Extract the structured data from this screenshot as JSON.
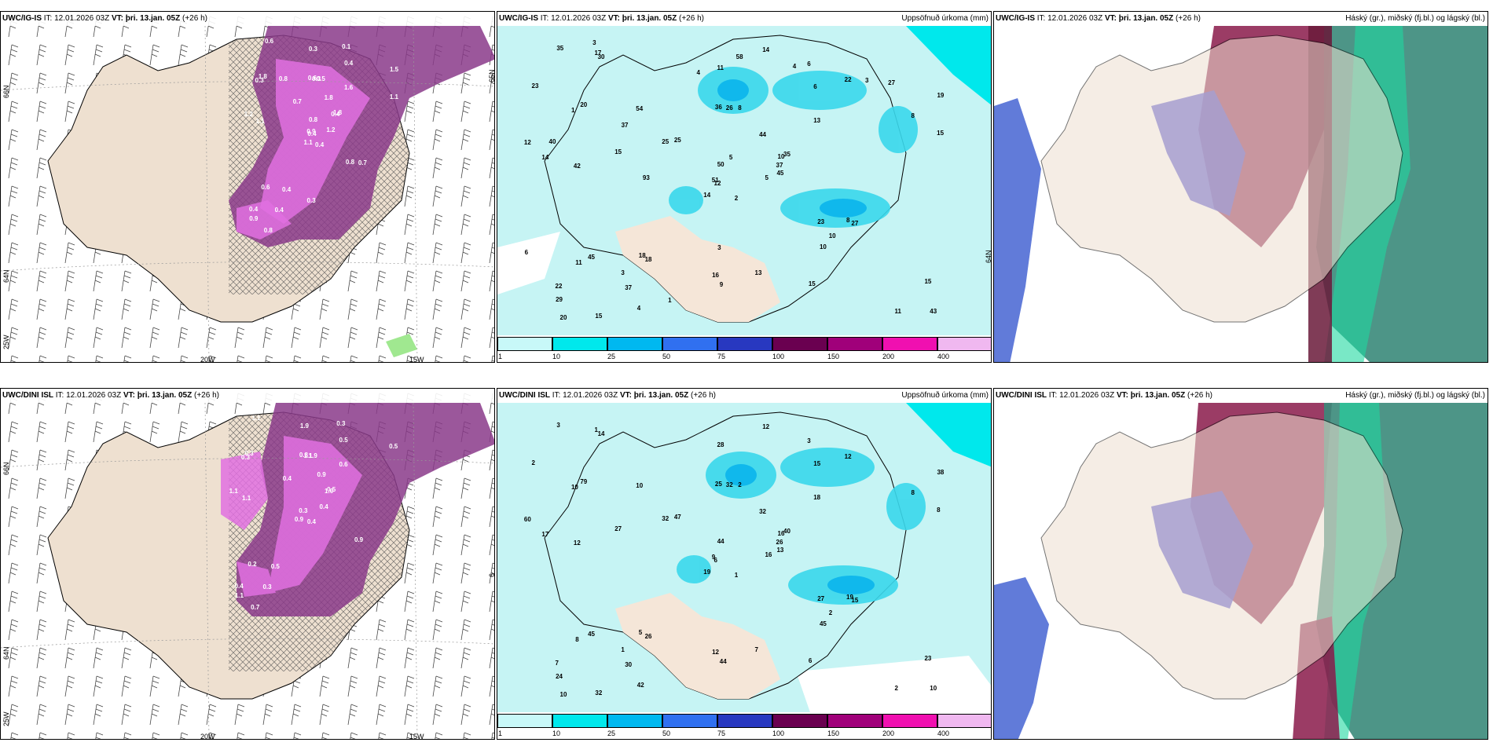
{
  "panels": [
    {
      "id": "top-left",
      "model": "UWC/IG-IS",
      "it_label": "IT:",
      "it": "12.01.2026 03Z",
      "vt_label": "VT:",
      "vt": "þri. 13.jan. 05Z",
      "lead": "(+26 h)",
      "right_title": "",
      "lon_labels": [
        "20W",
        "15W"
      ],
      "lat_labels": [
        "66N",
        "64N",
        "25W",
        "65N"
      ]
    },
    {
      "id": "top-middle",
      "model": "UWC/IG-IS",
      "it_label": "IT:",
      "it": "12.01.2026 03Z",
      "vt_label": "VT:",
      "vt": "þri. 13.jan. 05Z",
      "lead": "(+26 h)",
      "right_title": "Uppsöfnuð úrkoma (mm)",
      "lon_labels": [],
      "lat_labels": [
        "64N"
      ]
    },
    {
      "id": "top-right",
      "model": "UWC/IG-IS",
      "it_label": "IT:",
      "it": "12.01.2026 03Z",
      "vt_label": "VT:",
      "vt": "þri. 13.jan. 05Z",
      "lead": "(+26 h)",
      "right_title": "Háský (gr.), miðský (fj.bl.) og lágský (bl.)",
      "lon_labels": [],
      "lat_labels": []
    },
    {
      "id": "bottom-left",
      "model": "UWC/DINI ISL",
      "it_label": "IT:",
      "it": "12.01.2026 03Z",
      "vt_label": "VT:",
      "vt": "þri. 13.jan. 05Z",
      "lead": "(+26 h)",
      "right_title": "",
      "lon_labels": [
        "20W",
        "15W"
      ],
      "lat_labels": [
        "66N",
        "64N",
        "25W",
        "6"
      ]
    },
    {
      "id": "bottom-middle",
      "model": "UWC/DINI ISL",
      "it_label": "IT:",
      "it": "12.01.2026 03Z",
      "vt_label": "VT:",
      "vt": "þri. 13.jan. 05Z",
      "lead": "(+26 h)",
      "right_title": "Uppsöfnuð úrkoma (mm)",
      "lon_labels": [],
      "lat_labels": []
    },
    {
      "id": "bottom-right",
      "model": "UWC/DINI ISL",
      "it_label": "IT:",
      "it": "12.01.2026 03Z",
      "vt_label": "VT:",
      "vt": "þri. 13.jan. 05Z",
      "lead": "(+26 h)",
      "right_title": "Háský (gr.), miðský (fj.bl.) og lágský (bl.)",
      "lon_labels": [],
      "lat_labels": []
    }
  ],
  "colorbar": {
    "ticks": [
      "1",
      "10",
      "25",
      "50",
      "75",
      "100",
      "150",
      "200",
      "400"
    ],
    "colors": [
      "#c8f8f8",
      "#00e8ec",
      "#00b8f0",
      "#3070f0",
      "#2838c0",
      "#6a0050",
      "#a0007a",
      "#f010b0",
      "#f0b8f0"
    ]
  },
  "snow_labels_top": [
    "0.4",
    "0.3",
    "0.4",
    "0.4",
    "0.4",
    "0.4",
    "0.1",
    "0.5",
    "0.4",
    "1.2",
    "0.6",
    "0.4",
    "1.1",
    "1.5",
    "1.1",
    "1.6",
    "0.8",
    "0.6",
    "1.8",
    "0.6",
    "0.7",
    "0.9",
    "0.4",
    "0.3",
    "1.8",
    "0.7",
    "1.8",
    "0.3",
    "1.2",
    "0.8",
    "1.1",
    "0.9",
    "0.3",
    "0.8",
    "0.8"
  ],
  "snow_labels_bottom": [
    "0.4",
    "0.3",
    "0.3",
    "0.4",
    "1.0",
    "0.5",
    "0.3",
    "1.9",
    "0.5",
    "0.4",
    "1.1",
    "1.2",
    "1.1",
    "0.5",
    "0.9",
    "0.6",
    "0.7",
    "0.8",
    "0.9",
    "0.2",
    "0.4",
    "1.1",
    "0.3",
    "1.1",
    "0.5",
    "0.9",
    "0.3",
    "1.9",
    "1.1"
  ],
  "precip_labels_top": [
    "2",
    "1",
    "12",
    "22",
    "10",
    "18",
    "6",
    "8",
    "6",
    "5",
    "30",
    "43",
    "42",
    "19",
    "14",
    "13",
    "15",
    "36",
    "44",
    "45",
    "25",
    "29",
    "37",
    "26",
    "35",
    "27",
    "20",
    "11",
    "14",
    "23",
    "15",
    "51",
    "16",
    "50",
    "54",
    "22",
    "18",
    "11",
    "15",
    "8",
    "14",
    "25",
    "15",
    "10",
    "4",
    "12",
    "37",
    "20",
    "9",
    "45",
    "11",
    "8",
    "23",
    "10",
    "15",
    "3",
    "17",
    "35",
    "13",
    "27",
    "58",
    "93",
    "40",
    "37",
    "3",
    "3",
    "4",
    "4",
    "5",
    "6",
    "3",
    "1"
  ],
  "precip_labels_bottom": [
    "1",
    "10",
    "6",
    "7",
    "16",
    "26",
    "3",
    "2",
    "15",
    "16",
    "14",
    "10",
    "12",
    "38",
    "19",
    "18",
    "32",
    "25",
    "32",
    "45",
    "47",
    "24",
    "30",
    "32",
    "40",
    "15",
    "79",
    "28",
    "17",
    "27",
    "8",
    "9",
    "12",
    "44",
    "10",
    "12",
    "5",
    "2",
    "23",
    "19",
    "12",
    "32",
    "27",
    "45",
    "42",
    "60",
    "26",
    "10",
    "44",
    "13",
    "8",
    "8",
    "2",
    "2",
    "6",
    "1",
    "1",
    "3",
    "7"
  ]
}
